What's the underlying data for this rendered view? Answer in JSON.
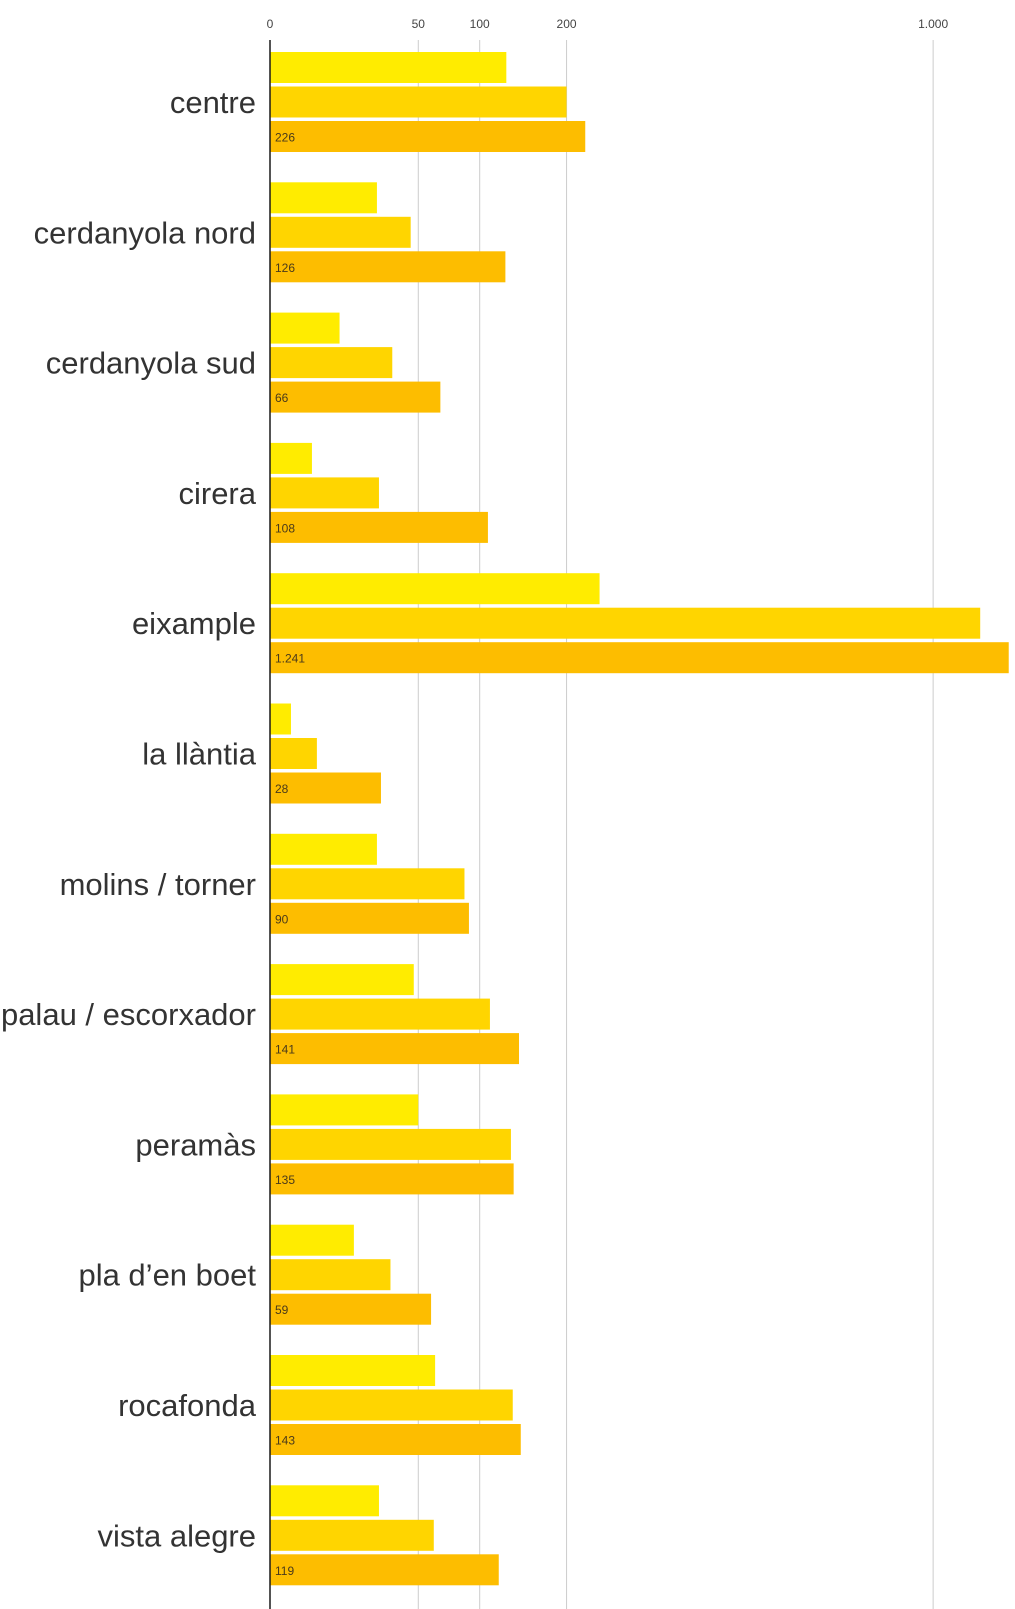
{
  "chart_data": {
    "type": "bar",
    "orientation": "horizontal",
    "grid": true,
    "x_scale": "sqrt",
    "xlim": [
      0,
      1241
    ],
    "x_ticks": [
      {
        "value": 0,
        "label": "0"
      },
      {
        "value": 50,
        "label": "50"
      },
      {
        "value": 100,
        "label": "100"
      },
      {
        "value": 200,
        "label": "200"
      },
      {
        "value": 1000,
        "label": "1.000"
      }
    ],
    "categories": [
      "centre",
      "cerdanyola nord",
      "cerdanyola sud",
      "cirera",
      "eixample",
      "la llàntia",
      "molins / torner",
      "palau / escorxador",
      "peramàs",
      "pla d’en boet",
      "rocafonda",
      "vista alegre"
    ],
    "series": [
      {
        "color": "#ffec00",
        "values": [
          127,
          26,
          11,
          4,
          247,
          1,
          26,
          47,
          50,
          16,
          62,
          27
        ]
      },
      {
        "color": "#ffd500",
        "values": [
          200,
          45,
          34,
          27,
          1147,
          5,
          86,
          110,
          132,
          33,
          134,
          61
        ]
      },
      {
        "color": "#fdbd00",
        "values": [
          226,
          126,
          66,
          108,
          1241,
          28,
          90,
          141,
          135,
          59,
          143,
          119
        ],
        "data_labels": [
          "226",
          "126",
          "66",
          "108",
          "1.241",
          "28",
          "90",
          "141",
          "135",
          "59",
          "143",
          "119"
        ]
      }
    ]
  }
}
